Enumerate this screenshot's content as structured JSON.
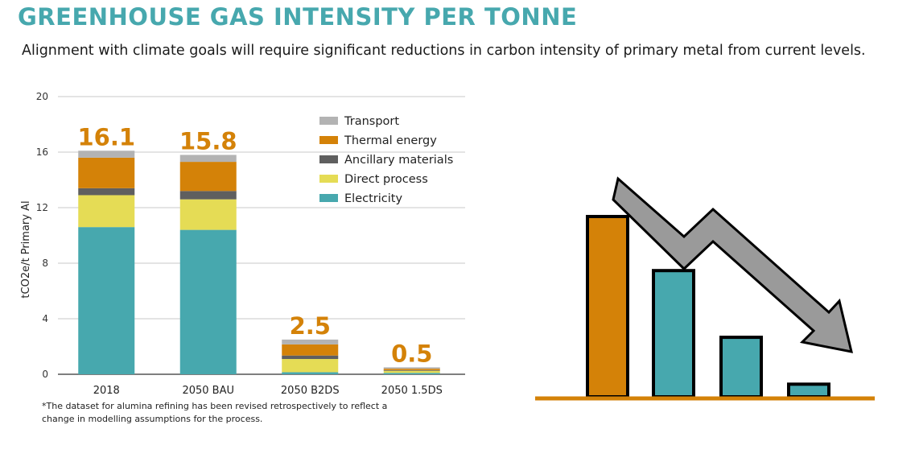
{
  "header": {
    "title": "GREENHOUSE GAS INTENSITY PER TONNE",
    "subtitle": "Alignment with climate goals will require significant reductions in carbon intensity of primary metal from current levels."
  },
  "footnote": "*The dataset for alumina refining has been revised retrospectively to reflect a change in modelling assumptions for the process.",
  "chart_data": {
    "type": "bar",
    "stacked": true,
    "categories": [
      "2018",
      "2050 BAU",
      "2050 B2DS",
      "2050 1.5DS"
    ],
    "series": [
      {
        "name": "Electricity",
        "color": "#47a8ae",
        "values": [
          10.6,
          10.4,
          0.15,
          0.1
        ]
      },
      {
        "name": "Direct process",
        "color": "#e5dc55",
        "values": [
          2.3,
          2.2,
          0.95,
          0.15
        ]
      },
      {
        "name": "Ancillary materials",
        "color": "#5f5f5f",
        "values": [
          0.5,
          0.6,
          0.25,
          0.05
        ]
      },
      {
        "name": "Thermal energy",
        "color": "#d48208",
        "values": [
          2.2,
          2.1,
          0.8,
          0.1
        ]
      },
      {
        "name": "Transport",
        "color": "#b3b3b3",
        "values": [
          0.5,
          0.5,
          0.35,
          0.1
        ]
      }
    ],
    "totals": [
      "16.1",
      "15.8",
      "2.5",
      "0.5"
    ],
    "total_label_color": "#d48208",
    "ylabel": "tCO2e/t Primary Al",
    "ylim": [
      0,
      20
    ],
    "yticks": [
      0,
      4,
      8,
      12,
      16,
      20
    ],
    "grid": true,
    "legend_position": "top-right"
  },
  "illustration": {
    "bar_colors": [
      "#d48208",
      "#47a8ae",
      "#47a8ae",
      "#47a8ae"
    ],
    "levels": [
      1.0,
      0.7,
      0.33,
      0.07
    ],
    "baseline_color": "#d48208",
    "arrow_color": "#9a9a9a",
    "icon": "declining-bars-arrow-icon"
  }
}
